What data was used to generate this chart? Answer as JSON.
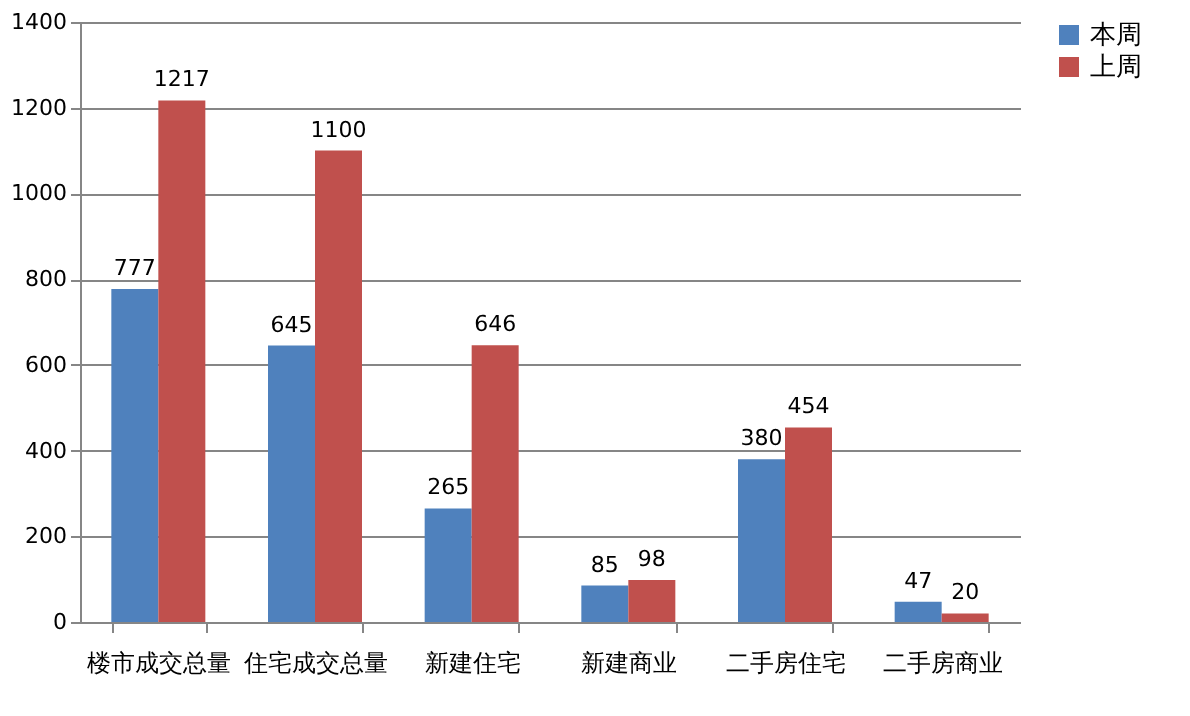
{
  "chart_data": {
    "type": "bar",
    "categories": [
      "楼市成交总量",
      "住宅成交总量",
      "新建住宅",
      "新建商业",
      "二手房住宅",
      "二手房商业"
    ],
    "series": [
      {
        "name": "本周",
        "color": "#4f81bd",
        "values": [
          777,
          645,
          265,
          85,
          380,
          47
        ]
      },
      {
        "name": "上周",
        "color": "#c0504d",
        "values": [
          1217,
          1100,
          646,
          98,
          454,
          20
        ]
      }
    ],
    "ylim": [
      0,
      1400
    ],
    "yticks": [
      0,
      200,
      400,
      600,
      800,
      1000,
      1200,
      1400
    ],
    "grid": "y",
    "legend": "right",
    "data_labels": true
  }
}
